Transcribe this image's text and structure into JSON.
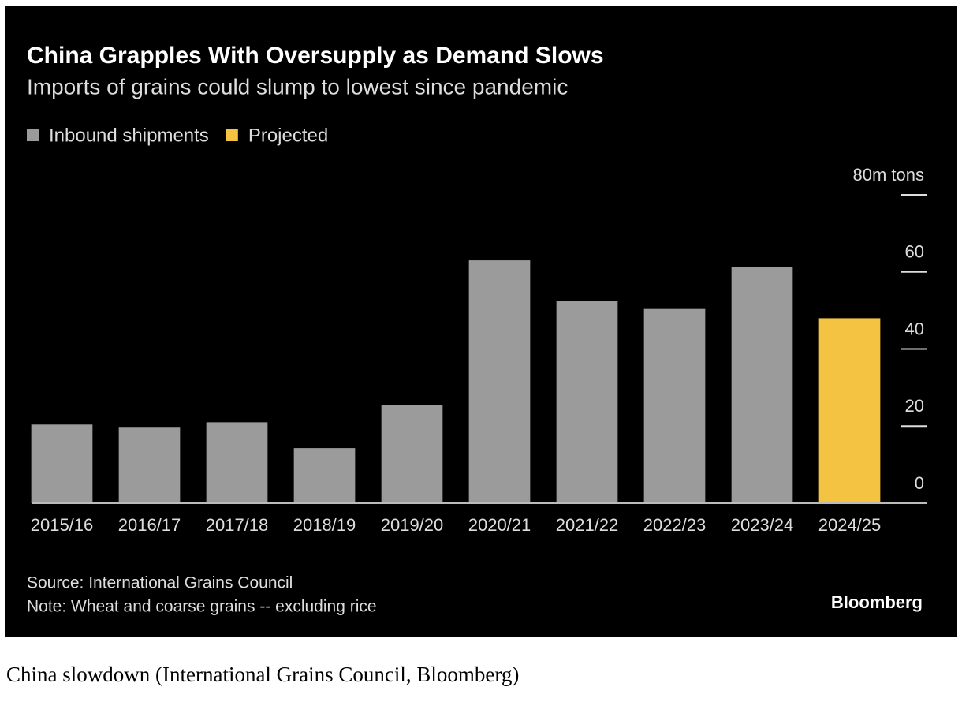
{
  "chart_data": {
    "type": "bar",
    "title": "China Grapples With Oversupply as Demand Slows",
    "subtitle": "Imports of grains could slump to lowest since pandemic",
    "categories": [
      "2015/16",
      "2016/17",
      "2017/18",
      "2018/19",
      "2019/20",
      "2020/21",
      "2021/22",
      "2022/23",
      "2023/24",
      "2024/25"
    ],
    "series": [
      {
        "name": "Inbound shipments",
        "color": "#9b9b9b",
        "values": [
          20.4,
          19.8,
          21,
          14.3,
          25.5,
          63,
          52.4,
          50.4,
          61.2,
          null
        ]
      },
      {
        "name": "Projected",
        "color": "#f5c342",
        "values": [
          null,
          null,
          null,
          null,
          null,
          null,
          null,
          null,
          null,
          48
        ]
      }
    ],
    "ylim": [
      0,
      80
    ],
    "yticks": [
      0,
      20,
      40,
      60,
      {
        "value": 80,
        "label": "80m tons"
      }
    ],
    "source": "Source: International Grains Council",
    "note": "Note: Wheat and coarse grains -- excluding rice",
    "brand": "Bloomberg"
  },
  "caption": "China slowdown (International Grains Council, Bloomberg)"
}
